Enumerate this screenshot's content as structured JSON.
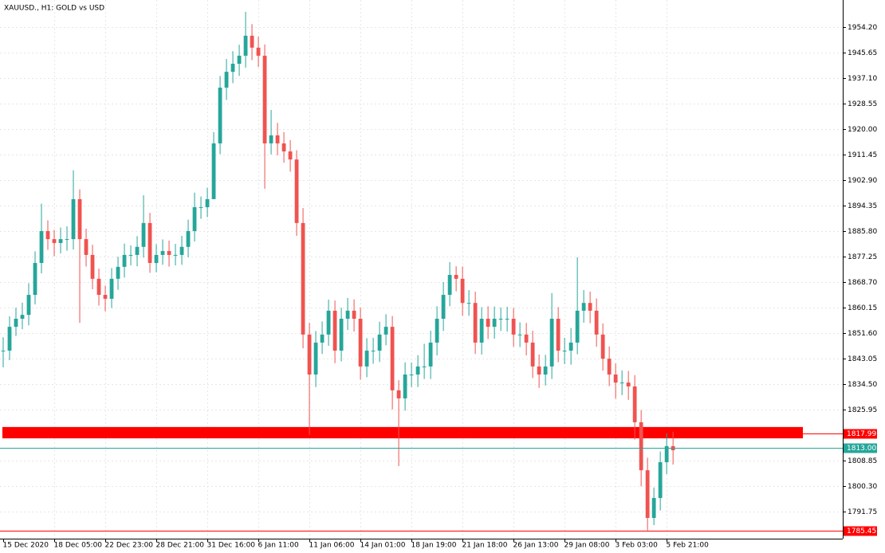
{
  "chart_data": {
    "type": "candlestick",
    "title": "XAUUSD., H1:  GOLD vs USD",
    "up_color": "#26a69a",
    "down_color": "#ef5350",
    "grid": true,
    "close": [
      1845.7,
      1853.7,
      1856.4,
      1857.7,
      1864.4,
      1875.1,
      1885.8,
      1883.1,
      1881.8,
      1883.1,
      1883.1,
      1896.5,
      1883.1,
      1877.8,
      1869.8,
      1864.4,
      1863.1,
      1869.8,
      1873.8,
      1877.8,
      1877.8,
      1880.5,
      1888.5,
      1875.1,
      1877.8,
      1879.1,
      1877.8,
      1877.8,
      1880.5,
      1885.8,
      1893.8,
      1893.8,
      1896.5,
      1915.2,
      1933.9,
      1939.2,
      1941.9,
      1944.6,
      1951.3,
      1947.3,
      1944.6,
      1915.2,
      1917.9,
      1915.2,
      1912.5,
      1909.8,
      1888.5,
      1851.1,
      1837.7,
      1848.4,
      1851.1,
      1859.1,
      1845.7,
      1856.4,
      1859.1,
      1856.4,
      1840.4,
      1845.7,
      1845.7,
      1851.1,
      1853.7,
      1832.4,
      1829.7,
      1837.7,
      1837.7,
      1840.4,
      1840.4,
      1848.4,
      1856.4,
      1864.4,
      1871.1,
      1869.8,
      1861.7,
      1861.7,
      1848.4,
      1856.4,
      1853.7,
      1856.4,
      1856.4,
      1856.4,
      1851.1,
      1851.1,
      1848.4,
      1840.4,
      1837.7,
      1840.4,
      1856.4,
      1845.7,
      1845.7,
      1848.4,
      1859.1,
      1861.7,
      1859.1,
      1851.1,
      1843.0,
      1837.7,
      1835.0,
      1835.0,
      1833.7,
      1821.7,
      1805.6,
      1789.6,
      1796.3,
      1808.3,
      1813.7,
      1812.3
    ],
    "high": [
      1850.2,
      1857.2,
      1860.1,
      1861.8,
      1868.3,
      1879.0,
      1895.0,
      1889.4,
      1886.2,
      1887.0,
      1887.4,
      1906.2,
      1899.8,
      1886.6,
      1881.2,
      1873.2,
      1867.5,
      1873.4,
      1877.2,
      1881.6,
      1881.0,
      1884.1,
      1897.8,
      1891.9,
      1881.4,
      1883.0,
      1882.6,
      1881.5,
      1884.2,
      1889.6,
      1898.7,
      1897.4,
      1900.3,
      1919.0,
      1937.8,
      1943.5,
      1946.1,
      1948.3,
      1959.3,
      1955.2,
      1951.0,
      1948.4,
      1926.4,
      1922.1,
      1919.0,
      1916.3,
      1912.9,
      1893.5,
      1855.0,
      1852.3,
      1855.5,
      1862.8,
      1862.5,
      1860.1,
      1863.4,
      1862.9,
      1860.1,
      1849.9,
      1850.0,
      1855.4,
      1857.9,
      1857.3,
      1835.8,
      1841.8,
      1841.7,
      1844.2,
      1848.0,
      1852.4,
      1860.6,
      1868.7,
      1875.4,
      1874.0,
      1873.9,
      1866.0,
      1865.5,
      1860.3,
      1860.6,
      1860.5,
      1860.2,
      1860.4,
      1860.0,
      1855.2,
      1855.0,
      1852.4,
      1844.4,
      1844.3,
      1865.0,
      1860.3,
      1850.0,
      1853.3,
      1877.0,
      1866.0,
      1865.5,
      1863.2,
      1854.8,
      1847.1,
      1841.4,
      1839.1,
      1838.9,
      1837.5,
      1825.8,
      1809.8,
      1799.8,
      1811.9,
      1818.0,
      1818.5
    ],
    "low": [
      1840.1,
      1842.5,
      1850.6,
      1852.9,
      1854.2,
      1861.2,
      1871.6,
      1879.5,
      1877.4,
      1878.3,
      1879.2,
      1879.6,
      1855.0,
      1873.9,
      1866.3,
      1860.8,
      1858.9,
      1860.0,
      1866.1,
      1870.2,
      1874.3,
      1874.0,
      1876.9,
      1871.8,
      1872.0,
      1874.5,
      1873.9,
      1874.3,
      1874.5,
      1877.0,
      1882.3,
      1889.9,
      1890.5,
      1905.0,
      1911.6,
      1929.8,
      1935.4,
      1937.8,
      1940.6,
      1943.1,
      1940.8,
      1900.0,
      1911.5,
      1911.2,
      1908.7,
      1905.7,
      1884.2,
      1846.5,
      1817.4,
      1833.5,
      1844.6,
      1847.3,
      1841.5,
      1842.1,
      1852.6,
      1852.1,
      1836.0,
      1836.8,
      1841.3,
      1841.9,
      1847.5,
      1826.0,
      1807.0,
      1825.6,
      1833.5,
      1833.5,
      1836.2,
      1836.2,
      1844.1,
      1852.3,
      1860.6,
      1865.6,
      1857.4,
      1857.4,
      1844.6,
      1844.4,
      1849.6,
      1849.7,
      1852.3,
      1852.1,
      1847.0,
      1846.9,
      1844.1,
      1836.5,
      1833.2,
      1834.0,
      1836.2,
      1841.8,
      1841.2,
      1841.0,
      1844.5,
      1855.1,
      1854.9,
      1847.0,
      1839.0,
      1833.8,
      1829.6,
      1830.8,
      1829.2,
      1815.9,
      1800.2,
      1785.4,
      1787.2,
      1792.1,
      1804.3,
      1807.5
    ],
    "ylim": [
      1782.66,
      1963.28
    ],
    "yticks": [
      {
        "value": 1954.2,
        "label": "1954.20"
      },
      1945.65,
      {
        "value": 1937.1,
        "label": "1937.10"
      },
      1928.55,
      {
        "value": 1920,
        "label": "1920.00"
      },
      1911.45,
      {
        "value": 1902.9,
        "label": "1902.90"
      },
      1894.35,
      {
        "value": 1885.8,
        "label": "1885.80"
      },
      1877.25,
      {
        "value": 1868.7,
        "label": "1868.70"
      },
      1860.15,
      {
        "value": 1851.6,
        "label": "1851.60"
      },
      1843.05,
      {
        "value": 1834.5,
        "label": "1834.50"
      },
      1825.95,
      1808.85,
      {
        "value": 1800.3,
        "label": "1800.30"
      },
      1791.75
    ],
    "xlim": [
      -0.5,
      131.6
    ],
    "xticks": [
      {
        "value": 0,
        "label": "15 Dec 2020"
      },
      {
        "value": 8,
        "label": "18 Dec 05:00"
      },
      {
        "value": 16,
        "label": "22 Dec 23:00"
      },
      {
        "value": 24,
        "label": "28 Dec 21:00"
      },
      {
        "value": 32,
        "label": "31 Dec 16:00"
      },
      {
        "value": 40,
        "label": "6 Jan 11:00"
      },
      {
        "value": 48,
        "label": "11 Jan 06:00"
      },
      {
        "value": 56,
        "label": "14 Jan 01:00"
      },
      {
        "value": 64,
        "label": "18 Jan 19:00"
      },
      {
        "value": 72,
        "label": "21 Jan 18:00"
      },
      {
        "value": 80,
        "label": "26 Jan 13:00"
      },
      {
        "value": 88,
        "label": "29 Jan 08:00"
      },
      {
        "value": 96,
        "label": "3 Feb 03:00"
      },
      {
        "value": 104,
        "label": "5 Feb 21:00"
      }
    ],
    "zone": {
      "low": 1816.3,
      "high": 1820.1,
      "color": "#ff0000"
    },
    "levels": [
      {
        "value": 1817.99,
        "color": "#ff0000"
      },
      {
        "value": 1813,
        "label": "1813.00",
        "color": "#26a69a"
      },
      {
        "value": 1785.45,
        "color": "#ff0000"
      }
    ]
  }
}
